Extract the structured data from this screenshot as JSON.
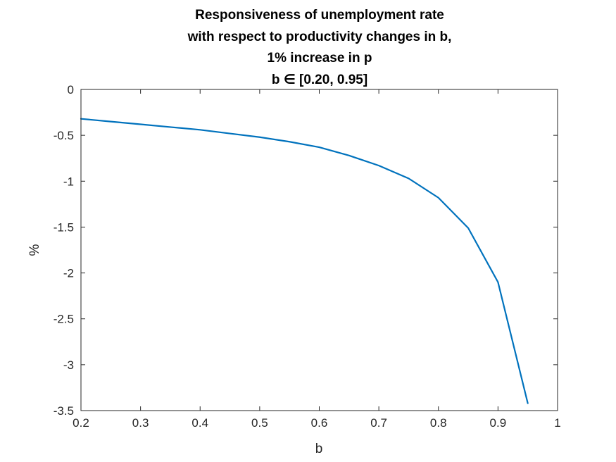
{
  "chart_data": {
    "type": "line",
    "title_lines": [
      "Responsiveness of unemployment rate",
      "with respect to productivity changes in b,",
      "1% increase in p",
      "b ∈ [0.20, 0.95]"
    ],
    "xlabel": "b",
    "ylabel": "%",
    "xlim": [
      0.2,
      1.0
    ],
    "ylim": [
      -3.5,
      0
    ],
    "xticks": [
      0.2,
      0.3,
      0.4,
      0.5,
      0.6,
      0.7,
      0.8,
      0.9,
      1.0
    ],
    "xtick_labels": [
      "0.2",
      "0.3",
      "0.4",
      "0.5",
      "0.6",
      "0.7",
      "0.8",
      "0.9",
      "1"
    ],
    "yticks": [
      0,
      -0.5,
      -1,
      -1.5,
      -2,
      -2.5,
      -3,
      -3.5
    ],
    "ytick_labels": [
      "0",
      "-0.5",
      "-1",
      "-1.5",
      "-2",
      "-2.5",
      "-3",
      "-3.5"
    ],
    "grid": false,
    "series": [
      {
        "color": "#0072bd",
        "x": [
          0.2,
          0.25,
          0.3,
          0.35,
          0.4,
          0.45,
          0.5,
          0.55,
          0.6,
          0.65,
          0.7,
          0.75,
          0.8,
          0.85,
          0.9,
          0.95
        ],
        "y": [
          -0.32,
          -0.35,
          -0.38,
          -0.41,
          -0.44,
          -0.48,
          -0.52,
          -0.57,
          -0.63,
          -0.72,
          -0.83,
          -0.97,
          -1.18,
          -1.51,
          -2.1,
          -3.42
        ]
      }
    ]
  }
}
